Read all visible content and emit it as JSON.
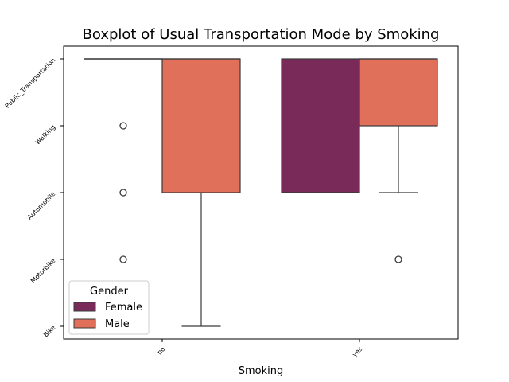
{
  "chart_data": {
    "type": "boxplot",
    "title": "Boxplot of Usual Transportation Mode by Smoking",
    "xlabel": "Smoking",
    "ylabel": "",
    "x_categories": [
      "no",
      "yes"
    ],
    "y_categories": [
      "Bike",
      "Motorbike",
      "Automobile",
      "Walking",
      "Public_Transportation"
    ],
    "y_tick_labels": [
      "Public_Transportation",
      "Walking",
      "Automobile",
      "Motorbike",
      "Bike"
    ],
    "legend": {
      "title": "Gender",
      "placement": "lower-left"
    },
    "series": [
      {
        "name": "Female",
        "color": "#7a2a58",
        "boxes": [
          {
            "x": "no",
            "whislo": 4,
            "q1": 4,
            "median": 4,
            "q3": 4,
            "whishi": 4,
            "fliers": [
              3,
              2,
              1
            ]
          },
          {
            "x": "yes",
            "whislo": 2,
            "q1": 2,
            "median": 2,
            "q3": 4,
            "whishi": 4,
            "fliers": []
          }
        ]
      },
      {
        "name": "Male",
        "color": "#e0705a",
        "boxes": [
          {
            "x": "no",
            "whislo": 0,
            "q1": 2,
            "median": 4,
            "q3": 4,
            "whishi": 4,
            "fliers": []
          },
          {
            "x": "yes",
            "whislo": 2,
            "q1": 3,
            "median": 4,
            "q3": 4,
            "whishi": 4,
            "fliers": [
              1
            ]
          }
        ]
      }
    ]
  }
}
